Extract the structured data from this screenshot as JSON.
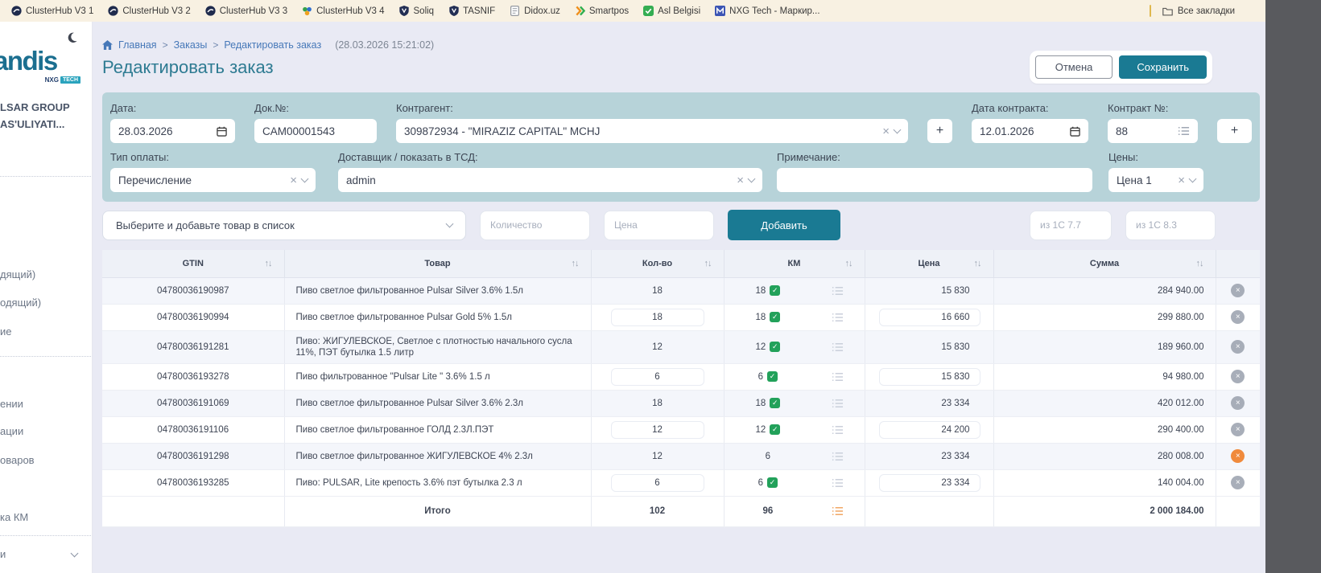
{
  "bookmarks": {
    "items": [
      {
        "label": "ClusterHub V3 1",
        "icon": "clusterhub-icon"
      },
      {
        "label": "ClusterHub V3 2",
        "icon": "clusterhub-icon"
      },
      {
        "label": "ClusterHub V3 3",
        "icon": "clusterhub-icon"
      },
      {
        "label": "ClusterHub V3 4",
        "icon": "clusterhub-color-icon"
      },
      {
        "label": "Soliq",
        "icon": "shield-icon"
      },
      {
        "label": "TASNIF",
        "icon": "shield-icon"
      },
      {
        "label": "Didox.uz",
        "icon": "document-icon"
      },
      {
        "label": "Smartpos",
        "icon": "smartpos-icon"
      },
      {
        "label": "Asl Belgisi",
        "icon": "check-badge-icon"
      },
      {
        "label": "NXG Tech - Маркир...",
        "icon": "m-badge-icon"
      }
    ],
    "all_bookmarks": "Все закладки"
  },
  "sidebar": {
    "logo": "andis",
    "logo_sub": "NXG",
    "logo_badge": "TECH",
    "company": [
      "LSAR GROUP",
      "AS'ULIYATI..."
    ],
    "menu_items": [
      "дящий)",
      "одящий)",
      "ие",
      "ении",
      "ации",
      "оваров",
      "ка КМ",
      "и"
    ]
  },
  "header": {
    "breadcrumb": [
      "Главная",
      "Заказы",
      "Редактировать заказ"
    ],
    "timestamp": "(28.03.2026 15:21:02)",
    "title": "Редактировать заказ",
    "cancel_label": "Отмена",
    "save_label": "Сохранить"
  },
  "form": {
    "date": {
      "label": "Дата:",
      "value": "28.03.2026"
    },
    "doc_no": {
      "label": "Док.№:",
      "value": "CAM00001543"
    },
    "contractor": {
      "label": "Контрагент:",
      "value": "309872934 - \"MIRAZIZ CAPITAL\" MCHJ"
    },
    "contract_date": {
      "label": "Дата контракта:",
      "value": "12.01.2026"
    },
    "contract_no": {
      "label": "Контракт №:",
      "value": "88"
    },
    "payment_type": {
      "label": "Тип оплаты:",
      "value": "Перечисление"
    },
    "courier": {
      "label": "Доставщик / показать в ТСД:",
      "value": "admin"
    },
    "note": {
      "label": "Примечание:",
      "value": ""
    },
    "prices": {
      "label": "Цены:",
      "value": "Цена 1"
    }
  },
  "add_row": {
    "product_placeholder": "Выберите и добавьте товар в список",
    "qty_placeholder": "Количество",
    "price_placeholder": "Цена",
    "add_label": "Добавить",
    "from_1c77": "из 1С 7.7",
    "from_1c83": "из 1С 8.3"
  },
  "table": {
    "columns": [
      "GTIN",
      "Товар",
      "Кол-во",
      "КМ",
      "Цена",
      "Сумма"
    ],
    "rows": [
      {
        "gtin": "04780036190987",
        "product": "Пиво светлое фильтрованное Pulsar Silver 3.6% 1.5л",
        "qty": "18",
        "km": "18",
        "km_ok": true,
        "price": "15 830",
        "sum": "284 940.00",
        "delete_color": "gray"
      },
      {
        "gtin": "04780036190994",
        "product": "Пиво светлое фильтрованное Pulsar Gold 5% 1.5л",
        "qty": "18",
        "km": "18",
        "km_ok": true,
        "price": "16 660",
        "sum": "299 880.00",
        "delete_color": "gray"
      },
      {
        "gtin": "04780036191281",
        "product": "Пиво: ЖИГУЛЕВСКОЕ, Светлое с плотностью начального сусла 11%, ПЭТ бутылка 1.5 литр",
        "qty": "12",
        "km": "12",
        "km_ok": true,
        "price": "15 830",
        "sum": "189 960.00",
        "delete_color": "gray"
      },
      {
        "gtin": "04780036193278",
        "product": "Пиво фильтрованное \"Pulsar Lite \" 3.6% 1.5 л",
        "qty": "6",
        "km": "6",
        "km_ok": true,
        "price": "15 830",
        "sum": "94 980.00",
        "delete_color": "gray"
      },
      {
        "gtin": "04780036191069",
        "product": "Пиво светлое фильтрованное Pulsar Silver 3.6% 2.3л",
        "qty": "18",
        "km": "18",
        "km_ok": true,
        "price": "23 334",
        "sum": "420 012.00",
        "delete_color": "gray"
      },
      {
        "gtin": "04780036191106",
        "product": "Пиво светлое фильтрованное ГОЛД 2.3Л.ПЭТ",
        "qty": "12",
        "km": "12",
        "km_ok": true,
        "price": "24 200",
        "sum": "290 400.00",
        "delete_color": "gray"
      },
      {
        "gtin": "04780036191298",
        "product": "Пиво светлое фильтрованное ЖИГУЛЕВСКОЕ 4% 2.3л",
        "qty": "12",
        "km": "6",
        "km_ok": false,
        "price": "23 334",
        "sum": "280 008.00",
        "delete_color": "orange"
      },
      {
        "gtin": "04780036193285",
        "product": "Пиво: PULSAR, Lite крепость 3.6% пэт бутылка 2.3 л",
        "qty": "6",
        "km": "6",
        "km_ok": true,
        "price": "23 334",
        "sum": "140 004.00",
        "delete_color": "gray"
      }
    ],
    "footer": {
      "label": "Итого",
      "qty": "102",
      "km": "96",
      "sum": "2 000 184.00"
    }
  },
  "colors": {
    "accent_teal": "#1a7a93",
    "panel_teal": "#b7d3d9",
    "success_green": "#22a15a",
    "warning_orange": "#f08a3c",
    "link_blue": "#4678b8"
  }
}
